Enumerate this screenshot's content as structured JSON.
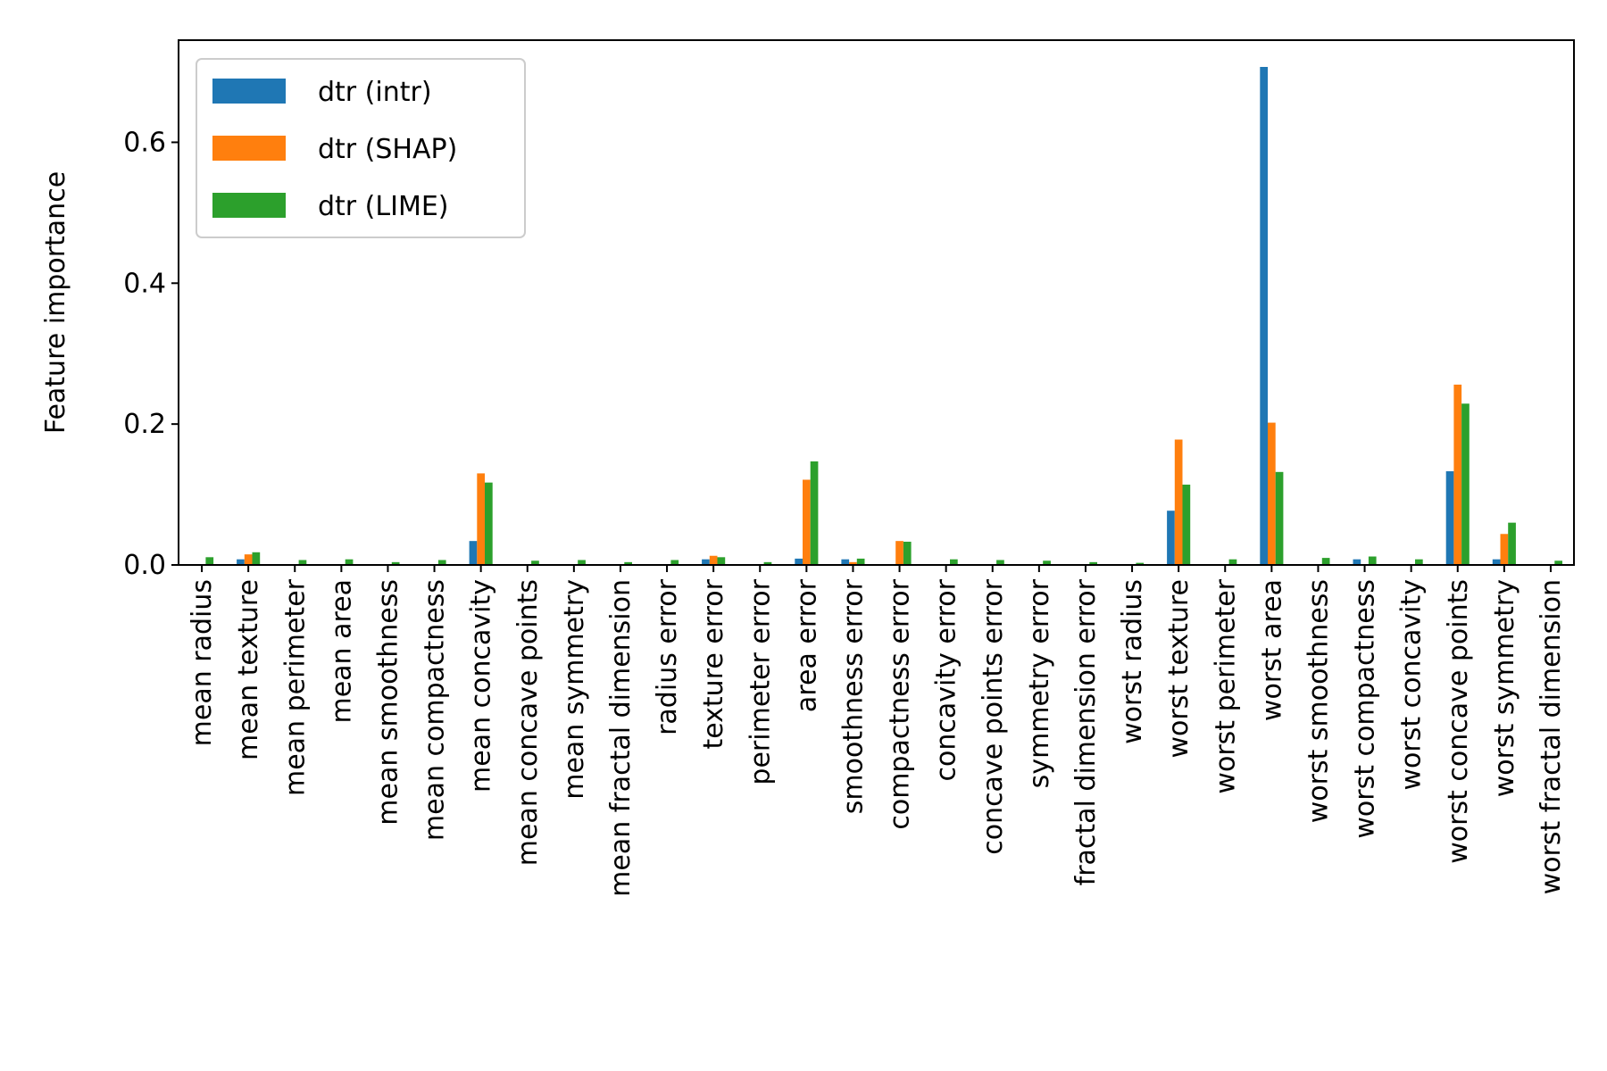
{
  "chart_data": {
    "type": "bar",
    "title": "",
    "xlabel": "",
    "ylabel": "Feature importance",
    "ylim": [
      0,
      0.745
    ],
    "yticks": [
      "0.0",
      "0.2",
      "0.4",
      "0.6"
    ],
    "grid": false,
    "legend_position": "top-left",
    "categories": [
      "mean radius",
      "mean texture",
      "mean perimeter",
      "mean area",
      "mean smoothness",
      "mean compactness",
      "mean concavity",
      "mean concave points",
      "mean symmetry",
      "mean fractal dimension",
      "radius error",
      "texture error",
      "perimeter error",
      "area error",
      "smoothness error",
      "compactness error",
      "concavity error",
      "concave points error",
      "symmetry error",
      "fractal dimension error",
      "worst radius",
      "worst texture",
      "worst perimeter",
      "worst area",
      "worst smoothness",
      "worst compactness",
      "worst concavity",
      "worst concave points",
      "worst symmetry",
      "worst fractal dimension"
    ],
    "series": [
      {
        "name": "dtr (intr)",
        "color": "#1f77b4",
        "values": [
          0,
          0.008,
          0,
          0,
          0,
          0,
          0.034,
          0,
          0,
          0,
          0,
          0.008,
          0,
          0.009,
          0.008,
          0,
          0,
          0,
          0,
          0,
          0,
          0.077,
          0,
          0.707,
          0,
          0.008,
          0,
          0.133,
          0.008,
          0
        ]
      },
      {
        "name": "dtr (SHAP)",
        "color": "#ff7f0e",
        "values": [
          0,
          0.015,
          0,
          0,
          0,
          0,
          0.13,
          0,
          0,
          0,
          0,
          0.013,
          0,
          0.121,
          0.004,
          0.034,
          0,
          0,
          0,
          0,
          0,
          0.178,
          0,
          0.202,
          0,
          0,
          0,
          0.256,
          0.044,
          0
        ]
      },
      {
        "name": "dtr (LIME)",
        "color": "#2ca02c",
        "values": [
          0.011,
          0.018,
          0.007,
          0.008,
          0.004,
          0.007,
          0.117,
          0.006,
          0.007,
          0.004,
          0.007,
          0.011,
          0.004,
          0.147,
          0.009,
          0.033,
          0.008,
          0.007,
          0.006,
          0.004,
          0.003,
          0.114,
          0.008,
          0.132,
          0.01,
          0.012,
          0.008,
          0.229,
          0.06,
          0.006
        ]
      }
    ]
  }
}
